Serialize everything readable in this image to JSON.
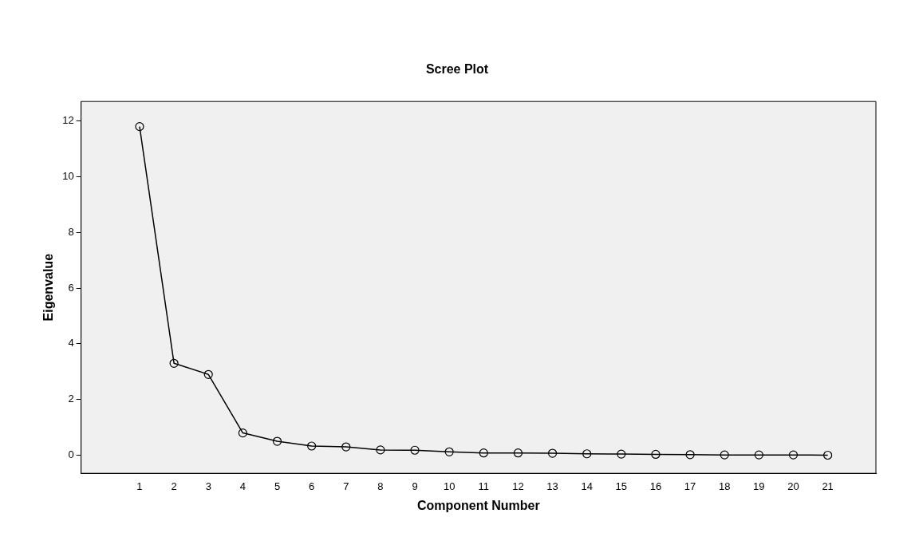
{
  "chart_data": {
    "type": "line",
    "title": "Scree Plot",
    "xlabel": "Component Number",
    "ylabel": "Eigenvalue",
    "x": [
      1,
      2,
      3,
      4,
      5,
      6,
      7,
      8,
      9,
      10,
      11,
      12,
      13,
      14,
      15,
      16,
      17,
      18,
      19,
      20,
      21
    ],
    "series": [
      {
        "color": "#000000",
        "values": [
          11.8,
          3.3,
          2.9,
          0.8,
          0.5,
          0.33,
          0.3,
          0.19,
          0.18,
          0.12,
          0.08,
          0.08,
          0.07,
          0.05,
          0.04,
          0.03,
          0.02,
          0.01,
          0.01,
          0.01,
          0.0
        ]
      }
    ],
    "xlim": [
      -0.7,
      22.4
    ],
    "xticks": [
      1,
      2,
      3,
      4,
      5,
      6,
      7,
      8,
      9,
      10,
      11,
      12,
      13,
      14,
      15,
      16,
      17,
      18,
      19,
      20,
      21
    ],
    "ylim": [
      -0.65,
      12.7
    ],
    "yticks": [
      0,
      2,
      4,
      6,
      8,
      10,
      12
    ],
    "grid": false,
    "legend": false,
    "marker": "circle",
    "line_style": "solid"
  }
}
